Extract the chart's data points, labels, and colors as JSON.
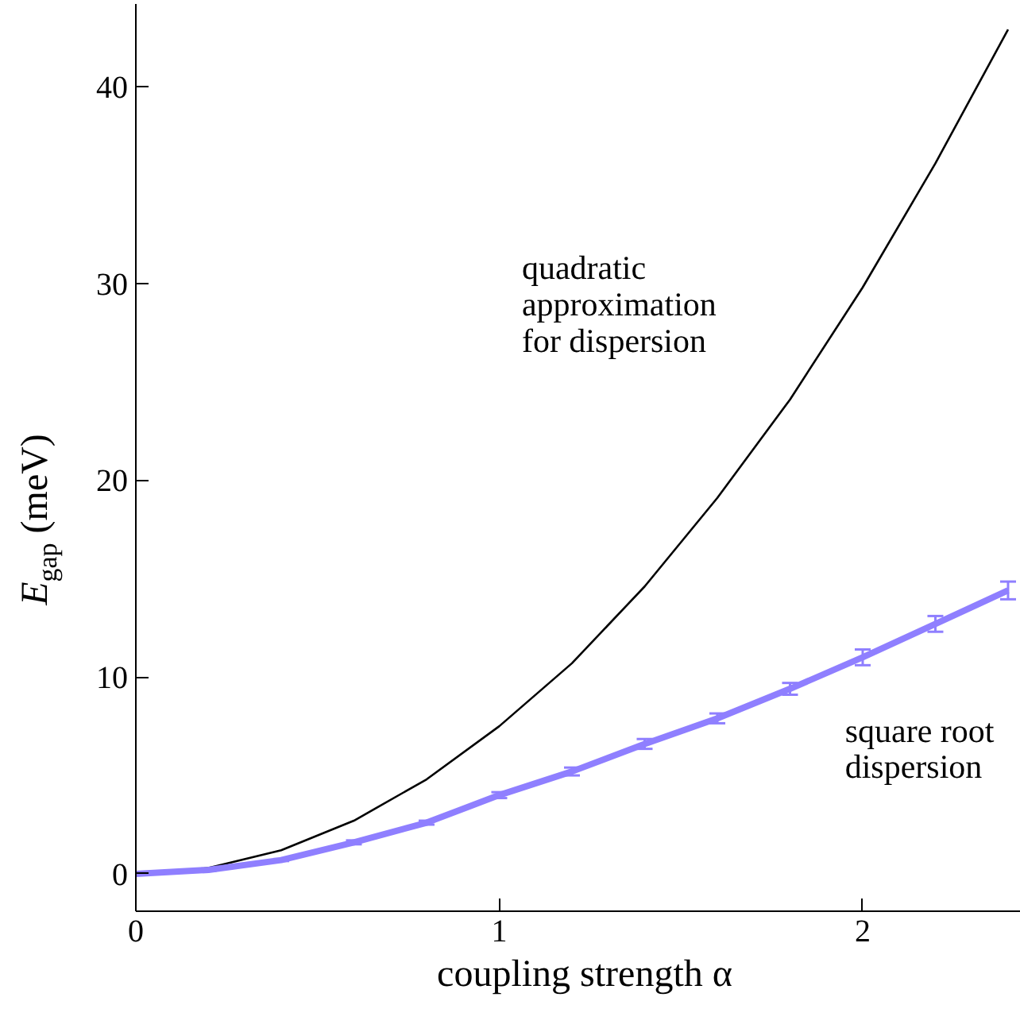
{
  "chart_data": {
    "type": "line",
    "xlabel": "coupling strength α",
    "ylabel": "E$_{gap}$ (meV)",
    "xlim": [
      0,
      2.47
    ],
    "ylim": [
      -1.9,
      44.2
    ],
    "xticks": [
      0,
      1,
      2
    ],
    "yticks": [
      0,
      10,
      20,
      30,
      40
    ],
    "grid": false,
    "series": [
      {
        "name": "quadratic approximation for dispersion",
        "color": "#000000",
        "x": [
          0,
          0.2,
          0.4,
          0.6,
          0.8,
          1.0,
          1.2,
          1.4,
          1.6,
          1.8,
          2.0,
          2.2,
          2.4
        ],
        "values": [
          0,
          0.3,
          1.2,
          2.7,
          4.8,
          7.5,
          10.7,
          14.6,
          19.1,
          24.1,
          29.8,
          36.1,
          42.9
        ]
      },
      {
        "name": "square root dispersion",
        "color": "#8f7fff",
        "x": [
          0,
          0.2,
          0.4,
          0.6,
          0.8,
          1.0,
          1.2,
          1.4,
          1.6,
          1.8,
          2.0,
          2.2,
          2.4
        ],
        "values": [
          0,
          0.2,
          0.7,
          1.6,
          2.6,
          4.0,
          5.2,
          6.6,
          7.9,
          9.4,
          11.0,
          12.7,
          14.4
        ],
        "errors": [
          null,
          0.05,
          0.05,
          0.1,
          0.1,
          0.15,
          0.2,
          0.25,
          0.25,
          0.3,
          0.4,
          0.4,
          0.45
        ]
      }
    ]
  }
}
